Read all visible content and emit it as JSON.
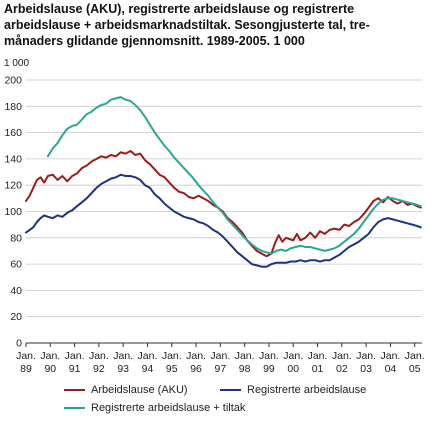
{
  "chart_data": {
    "type": "line",
    "title": "Arbeidslause (AKU), registrerte arbeidslause og registrerte arbeidslause + arbeidsmarknadstiltak. Sesongjusterte tal, tre-månaders glidande gjennomsnitt. 1989-2005. 1 000",
    "unit_label": "1 000",
    "xlabel": "",
    "ylabel": "",
    "ylim": [
      0,
      200
    ],
    "yticks": [
      0,
      20,
      40,
      60,
      80,
      100,
      120,
      140,
      160,
      180,
      200
    ],
    "x_ticks": [
      {
        "top": "Jan.",
        "bottom": "89"
      },
      {
        "top": "Jan.",
        "bottom": "90"
      },
      {
        "top": "Jan.",
        "bottom": "91"
      },
      {
        "top": "Jan.",
        "bottom": "92"
      },
      {
        "top": "Jan.",
        "bottom": "93"
      },
      {
        "top": "Jan.",
        "bottom": "94"
      },
      {
        "top": "Jan.",
        "bottom": "95"
      },
      {
        "top": "Jan.",
        "bottom": "96"
      },
      {
        "top": "Jan.",
        "bottom": "97"
      },
      {
        "top": "Jan.",
        "bottom": "98"
      },
      {
        "top": "Jan.",
        "bottom": "99"
      },
      {
        "top": "Jan.",
        "bottom": "00"
      },
      {
        "top": "Jan.",
        "bottom": "01"
      },
      {
        "top": "Jan.",
        "bottom": "02"
      },
      {
        "top": "Jan.",
        "bottom": "03"
      },
      {
        "top": "Jan.",
        "bottom": "04"
      },
      {
        "top": "Jan.",
        "bottom": "05"
      }
    ],
    "xlim": [
      1989.0,
      2005.3
    ],
    "grid": true,
    "legend_placement": "bottom",
    "series": [
      {
        "name": "Arbeidslause (AKU)",
        "color": "#9b1c1c",
        "points": [
          [
            1989.0,
            108
          ],
          [
            1989.15,
            112
          ],
          [
            1989.3,
            118
          ],
          [
            1989.45,
            124
          ],
          [
            1989.6,
            126
          ],
          [
            1989.75,
            122
          ],
          [
            1989.9,
            127
          ],
          [
            1990.1,
            128
          ],
          [
            1990.3,
            124
          ],
          [
            1990.5,
            127
          ],
          [
            1990.7,
            123
          ],
          [
            1990.9,
            127
          ],
          [
            1991.1,
            129
          ],
          [
            1991.3,
            133
          ],
          [
            1991.5,
            135
          ],
          [
            1991.7,
            138
          ],
          [
            1991.9,
            140
          ],
          [
            1992.1,
            142
          ],
          [
            1992.3,
            141
          ],
          [
            1992.5,
            143
          ],
          [
            1992.7,
            142
          ],
          [
            1992.9,
            145
          ],
          [
            1993.1,
            144
          ],
          [
            1993.3,
            146
          ],
          [
            1993.5,
            143
          ],
          [
            1993.7,
            144
          ],
          [
            1993.9,
            139
          ],
          [
            1994.1,
            136
          ],
          [
            1994.3,
            132
          ],
          [
            1994.5,
            128
          ],
          [
            1994.7,
            126
          ],
          [
            1994.9,
            122
          ],
          [
            1995.1,
            118
          ],
          [
            1995.3,
            115
          ],
          [
            1995.5,
            114
          ],
          [
            1995.7,
            111
          ],
          [
            1995.9,
            110
          ],
          [
            1996.1,
            112
          ],
          [
            1996.3,
            110
          ],
          [
            1996.5,
            108
          ],
          [
            1996.7,
            105
          ],
          [
            1996.9,
            103
          ],
          [
            1997.1,
            100
          ],
          [
            1997.3,
            95
          ],
          [
            1997.5,
            92
          ],
          [
            1997.7,
            88
          ],
          [
            1997.9,
            84
          ],
          [
            1998.1,
            78
          ],
          [
            1998.3,
            74
          ],
          [
            1998.5,
            70
          ],
          [
            1998.7,
            68
          ],
          [
            1998.9,
            66
          ],
          [
            1999.1,
            68
          ],
          [
            1999.25,
            76
          ],
          [
            1999.4,
            82
          ],
          [
            1999.55,
            77
          ],
          [
            1999.7,
            80
          ],
          [
            1999.85,
            79
          ],
          [
            2000.0,
            78
          ],
          [
            2000.15,
            83
          ],
          [
            2000.3,
            78
          ],
          [
            2000.5,
            80
          ],
          [
            2000.7,
            84
          ],
          [
            2000.9,
            80
          ],
          [
            2001.1,
            85
          ],
          [
            2001.3,
            83
          ],
          [
            2001.5,
            86
          ],
          [
            2001.7,
            87
          ],
          [
            2001.9,
            86
          ],
          [
            2002.1,
            90
          ],
          [
            2002.3,
            89
          ],
          [
            2002.5,
            92
          ],
          [
            2002.7,
            94
          ],
          [
            2002.9,
            98
          ],
          [
            2003.1,
            103
          ],
          [
            2003.3,
            108
          ],
          [
            2003.5,
            110
          ],
          [
            2003.7,
            107
          ],
          [
            2003.9,
            111
          ],
          [
            2004.1,
            108
          ],
          [
            2004.3,
            106
          ],
          [
            2004.5,
            108
          ],
          [
            2004.7,
            105
          ],
          [
            2004.9,
            106
          ],
          [
            2005.1,
            104
          ],
          [
            2005.25,
            103
          ]
        ]
      },
      {
        "name": "Registrerte arbeidslause",
        "color": "#1c3480",
        "points": [
          [
            1989.0,
            84
          ],
          [
            1989.15,
            86
          ],
          [
            1989.3,
            88
          ],
          [
            1989.45,
            92
          ],
          [
            1989.6,
            95
          ],
          [
            1989.75,
            97
          ],
          [
            1989.9,
            96
          ],
          [
            1990.1,
            95
          ],
          [
            1990.3,
            97
          ],
          [
            1990.5,
            96
          ],
          [
            1990.7,
            99
          ],
          [
            1990.9,
            101
          ],
          [
            1991.1,
            104
          ],
          [
            1991.3,
            107
          ],
          [
            1991.5,
            110
          ],
          [
            1991.7,
            114
          ],
          [
            1991.9,
            118
          ],
          [
            1992.1,
            121
          ],
          [
            1992.3,
            123
          ],
          [
            1992.5,
            125
          ],
          [
            1992.7,
            126
          ],
          [
            1992.9,
            128
          ],
          [
            1993.1,
            127
          ],
          [
            1993.3,
            127
          ],
          [
            1993.5,
            126
          ],
          [
            1993.7,
            124
          ],
          [
            1993.9,
            120
          ],
          [
            1994.1,
            118
          ],
          [
            1994.3,
            113
          ],
          [
            1994.5,
            110
          ],
          [
            1994.7,
            106
          ],
          [
            1994.9,
            103
          ],
          [
            1995.1,
            100
          ],
          [
            1995.3,
            98
          ],
          [
            1995.5,
            96
          ],
          [
            1995.7,
            95
          ],
          [
            1995.9,
            94
          ],
          [
            1996.1,
            92
          ],
          [
            1996.3,
            91
          ],
          [
            1996.5,
            89
          ],
          [
            1996.7,
            86
          ],
          [
            1996.9,
            84
          ],
          [
            1997.1,
            81
          ],
          [
            1997.3,
            77
          ],
          [
            1997.5,
            73
          ],
          [
            1997.7,
            69
          ],
          [
            1997.9,
            66
          ],
          [
            1998.1,
            63
          ],
          [
            1998.3,
            60
          ],
          [
            1998.5,
            59
          ],
          [
            1998.7,
            58
          ],
          [
            1998.9,
            58
          ],
          [
            1999.1,
            60
          ],
          [
            1999.3,
            61
          ],
          [
            1999.5,
            61
          ],
          [
            1999.7,
            61
          ],
          [
            1999.9,
            62
          ],
          [
            2000.1,
            62
          ],
          [
            2000.3,
            63
          ],
          [
            2000.5,
            62
          ],
          [
            2000.7,
            63
          ],
          [
            2000.9,
            63
          ],
          [
            2001.1,
            62
          ],
          [
            2001.3,
            63
          ],
          [
            2001.5,
            63
          ],
          [
            2001.7,
            65
          ],
          [
            2001.9,
            67
          ],
          [
            2002.1,
            70
          ],
          [
            2002.3,
            73
          ],
          [
            2002.5,
            75
          ],
          [
            2002.7,
            77
          ],
          [
            2002.9,
            80
          ],
          [
            2003.1,
            83
          ],
          [
            2003.3,
            88
          ],
          [
            2003.5,
            92
          ],
          [
            2003.7,
            94
          ],
          [
            2003.9,
            95
          ],
          [
            2004.1,
            94
          ],
          [
            2004.3,
            93
          ],
          [
            2004.5,
            92
          ],
          [
            2004.7,
            91
          ],
          [
            2004.9,
            90
          ],
          [
            2005.1,
            89
          ],
          [
            2005.25,
            88
          ]
        ]
      },
      {
        "name": "Registrerte arbeidslause + tiltak",
        "color": "#2aa597",
        "points": [
          [
            1989.9,
            142
          ],
          [
            1990.1,
            148
          ],
          [
            1990.3,
            152
          ],
          [
            1990.5,
            158
          ],
          [
            1990.7,
            163
          ],
          [
            1990.9,
            165
          ],
          [
            1991.1,
            166
          ],
          [
            1991.3,
            170
          ],
          [
            1991.5,
            174
          ],
          [
            1991.7,
            176
          ],
          [
            1991.9,
            179
          ],
          [
            1992.1,
            181
          ],
          [
            1992.3,
            182
          ],
          [
            1992.5,
            185
          ],
          [
            1992.7,
            186
          ],
          [
            1992.9,
            187
          ],
          [
            1993.1,
            185
          ],
          [
            1993.3,
            184
          ],
          [
            1993.5,
            181
          ],
          [
            1993.7,
            177
          ],
          [
            1993.9,
            172
          ],
          [
            1994.1,
            166
          ],
          [
            1994.3,
            160
          ],
          [
            1994.5,
            155
          ],
          [
            1994.7,
            150
          ],
          [
            1994.9,
            146
          ],
          [
            1995.1,
            141
          ],
          [
            1995.3,
            137
          ],
          [
            1995.5,
            133
          ],
          [
            1995.7,
            129
          ],
          [
            1995.9,
            125
          ],
          [
            1996.1,
            120
          ],
          [
            1996.3,
            116
          ],
          [
            1996.5,
            112
          ],
          [
            1996.7,
            107
          ],
          [
            1996.9,
            103
          ],
          [
            1997.1,
            99
          ],
          [
            1997.3,
            94
          ],
          [
            1997.5,
            90
          ],
          [
            1997.7,
            86
          ],
          [
            1997.9,
            82
          ],
          [
            1998.1,
            78
          ],
          [
            1998.3,
            75
          ],
          [
            1998.5,
            72
          ],
          [
            1998.7,
            70
          ],
          [
            1998.9,
            69
          ],
          [
            1999.1,
            68
          ],
          [
            1999.3,
            70
          ],
          [
            1999.5,
            71
          ],
          [
            1999.7,
            70
          ],
          [
            1999.9,
            72
          ],
          [
            2000.1,
            73
          ],
          [
            2000.3,
            74
          ],
          [
            2000.5,
            73
          ],
          [
            2000.7,
            73
          ],
          [
            2000.9,
            72
          ],
          [
            2001.1,
            71
          ],
          [
            2001.3,
            70
          ],
          [
            2001.5,
            71
          ],
          [
            2001.7,
            72
          ],
          [
            2001.9,
            74
          ],
          [
            2002.1,
            77
          ],
          [
            2002.3,
            80
          ],
          [
            2002.5,
            83
          ],
          [
            2002.7,
            87
          ],
          [
            2002.9,
            92
          ],
          [
            2003.1,
            97
          ],
          [
            2003.3,
            102
          ],
          [
            2003.5,
            106
          ],
          [
            2003.7,
            109
          ],
          [
            2003.9,
            110
          ],
          [
            2004.1,
            110
          ],
          [
            2004.3,
            109
          ],
          [
            2004.5,
            108
          ],
          [
            2004.7,
            107
          ],
          [
            2004.9,
            106
          ],
          [
            2005.1,
            105
          ],
          [
            2005.25,
            104
          ]
        ]
      }
    ]
  }
}
